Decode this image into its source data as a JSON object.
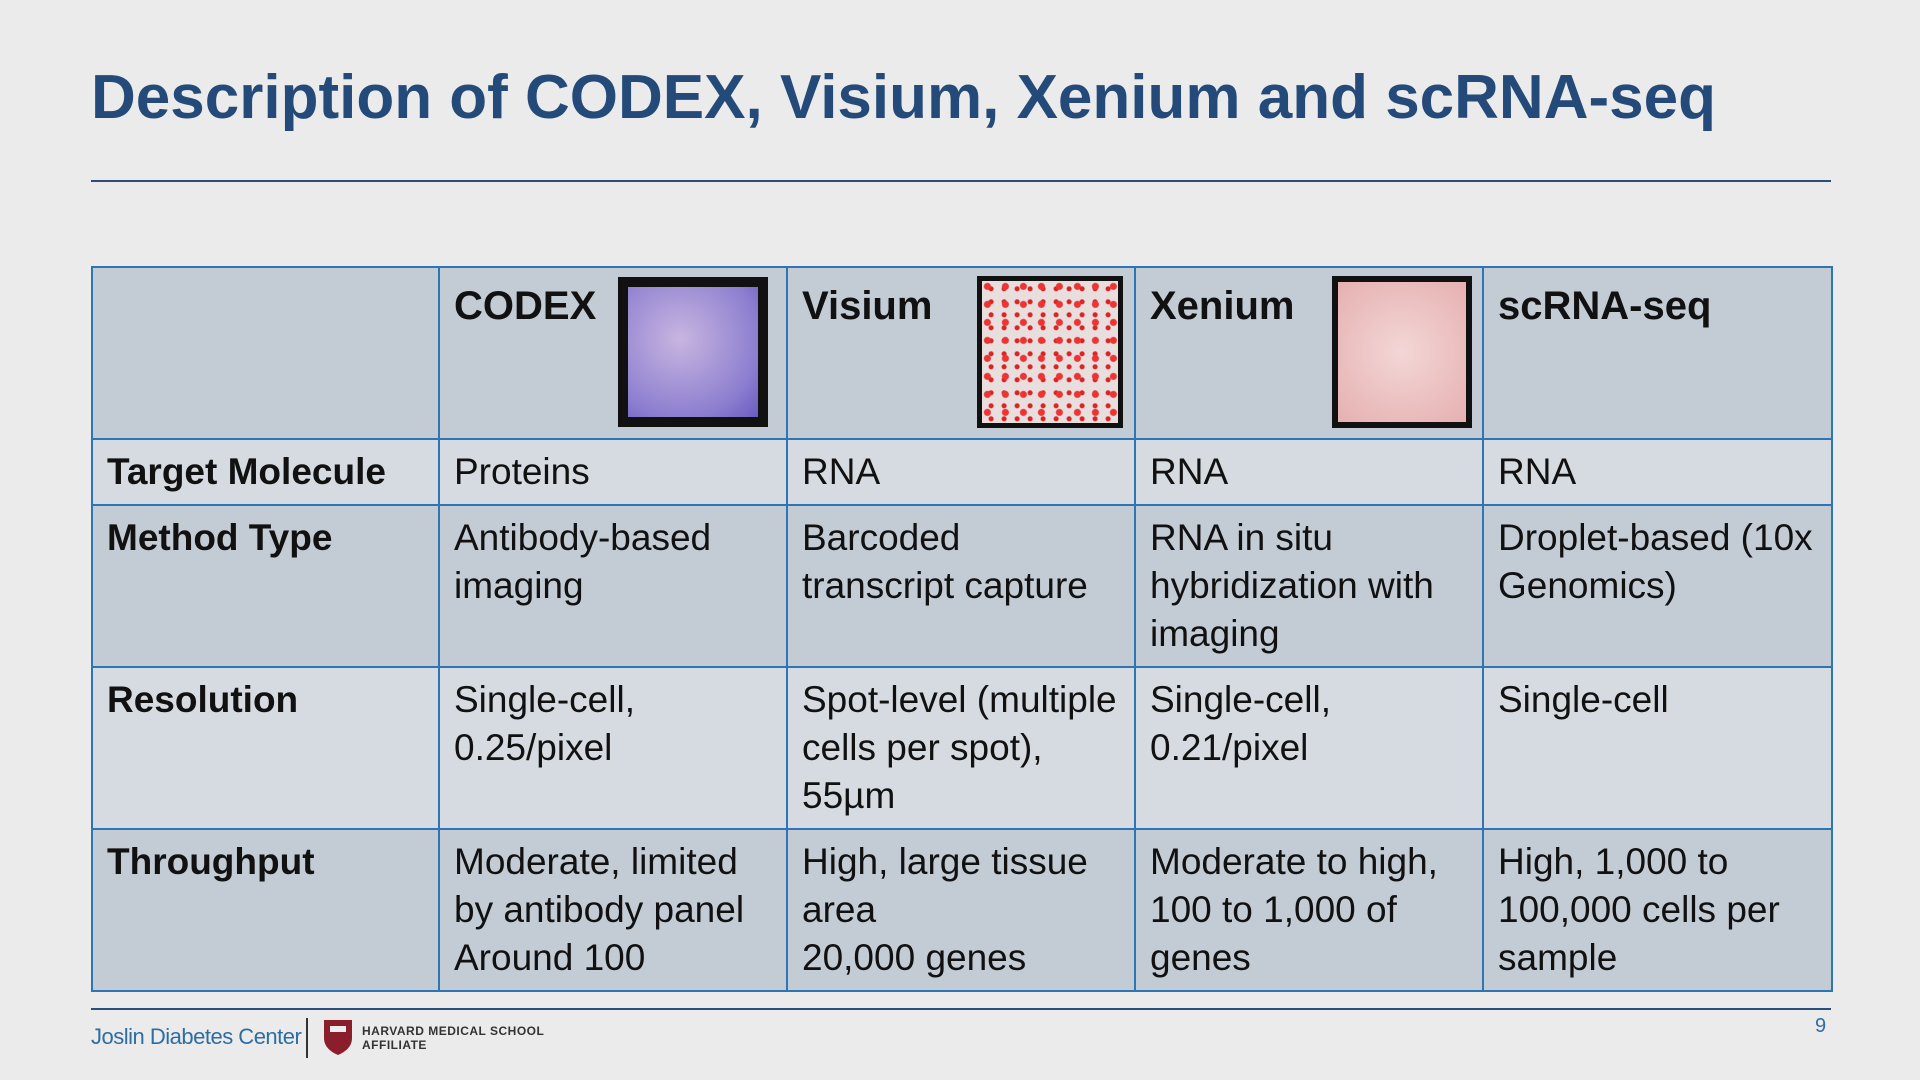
{
  "header": {
    "title": "Description of CODEX, Visium, Xenium and scRNA-seq"
  },
  "table": {
    "columns": [
      "CODEX",
      "Visium",
      "Xenium",
      "scRNA-seq"
    ],
    "rows": [
      {
        "label": "Target Molecule",
        "cells": [
          [
            "Proteins"
          ],
          [
            "RNA"
          ],
          [
            "RNA"
          ],
          [
            "RNA"
          ]
        ]
      },
      {
        "label": "Method Type",
        "cells": [
          [
            "Antibody-based imaging"
          ],
          [
            "Barcoded transcript capture"
          ],
          [
            "RNA in situ hybridization with imaging"
          ],
          [
            "Droplet-based (10x Genomics)"
          ]
        ]
      },
      {
        "label": "Resolution",
        "cells": [
          [
            "Single-cell, 0.25/pixel"
          ],
          [
            "Spot-level (multiple cells per spot), 55µm"
          ],
          [
            "Single-cell, 0.21/pixel"
          ],
          [
            "Single-cell"
          ]
        ]
      },
      {
        "label": "Throughput",
        "cells": [
          [
            "Moderate, limited by antibody panel",
            "Around 100"
          ],
          [
            "High, large tissue area",
            "20,000 genes"
          ],
          [
            "Moderate to high, 100 to 1,000 of genes"
          ],
          [
            "High, 1,000 to 100,000 cells per sample"
          ]
        ]
      }
    ]
  },
  "footer": {
    "org": "Joslin Diabetes Center",
    "affiliate_line1": "HARVARD MEDICAL SCHOOL",
    "affiliate_line2": "AFFILIATE",
    "page_number": "9"
  }
}
